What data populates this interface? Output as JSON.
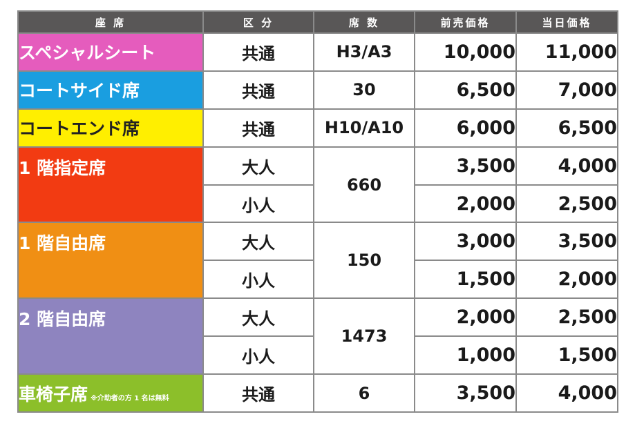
{
  "headers": [
    "座 席",
    "区 分",
    "席 数",
    "前売価格",
    "当日価格"
  ],
  "rows": [
    {
      "seat": "スペシャルシート",
      "color": "#e55cbd",
      "division": "共通",
      "seats": "H3/A3",
      "advance": "10,000",
      "same_day": "11,000"
    },
    {
      "seat": "コートサイド席",
      "color": "#1a9ee0",
      "division": "共通",
      "seats": "30",
      "advance": "6,500",
      "same_day": "7,000"
    },
    {
      "seat": "コートエンド席",
      "color": "#ffef00",
      "division": "共通",
      "seats": "H10/A10",
      "advance": "6,000",
      "same_day": "6,500"
    },
    {
      "seat": "1 階指定席",
      "color": "#f23b12",
      "seats": "660",
      "tiers": [
        {
          "division": "大人",
          "advance": "3,500",
          "same_day": "4,000"
        },
        {
          "division": "小人",
          "advance": "2,000",
          "same_day": "2,500"
        }
      ]
    },
    {
      "seat": "1 階自由席",
      "color": "#f08f14",
      "seats": "150",
      "tiers": [
        {
          "division": "大人",
          "advance": "3,000",
          "same_day": "3,500"
        },
        {
          "division": "小人",
          "advance": "1,500",
          "same_day": "2,000"
        }
      ]
    },
    {
      "seat": "2 階自由席",
      "color": "#8e84bf",
      "seats": "1473",
      "tiers": [
        {
          "division": "大人",
          "advance": "2,000",
          "same_day": "2,500"
        },
        {
          "division": "小人",
          "advance": "1,000",
          "same_day": "1,500"
        }
      ]
    },
    {
      "seat": "車椅子席",
      "note": "※介助者の方 1 名は無料",
      "color": "#8cbf2a",
      "division": "共通",
      "seats": "6",
      "advance": "3,500",
      "same_day": "4,000"
    }
  ]
}
